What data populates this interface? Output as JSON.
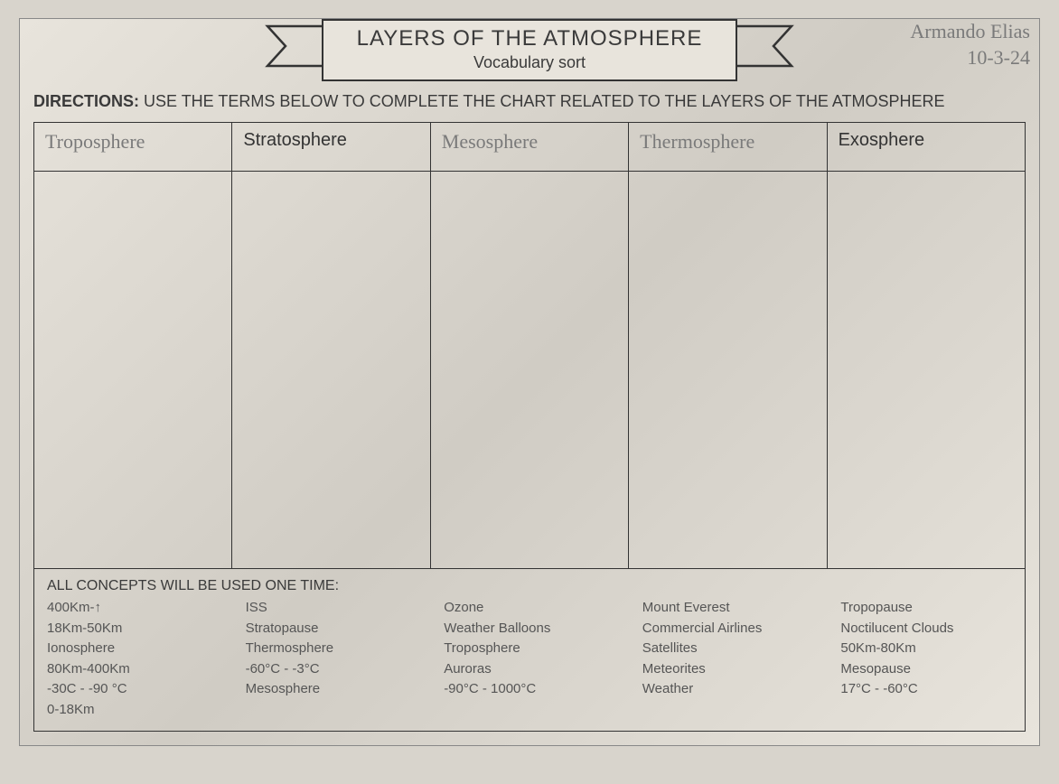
{
  "title": {
    "main": "LAYERS OF THE ATMOSPHERE",
    "sub": "Vocabulary sort"
  },
  "student": {
    "name_line1": "Armando Elias",
    "name_line2": "10-3-24"
  },
  "directions": {
    "label": "DIRECTIONS:",
    "text": " USE THE TERMS BELOW TO COMPLETE THE CHART RELATED TO THE LAYERS OF THE ATMOSPHERE"
  },
  "chart": {
    "headers": [
      {
        "text": "Troposphere",
        "handwritten": true
      },
      {
        "text": "Stratosphere",
        "handwritten": false
      },
      {
        "text": "Mesosphere",
        "handwritten": true
      },
      {
        "text": "Thermosphere",
        "handwritten": true
      },
      {
        "text": "Exosphere",
        "handwritten": false
      }
    ]
  },
  "concepts": {
    "title": "ALL CONCEPTS WILL BE USED ONE TIME:",
    "columns": [
      [
        "400Km-↑",
        "18Km-50Km",
        "Ionosphere",
        "80Km-400Km",
        "-30C - -90 °C",
        "0-18Km"
      ],
      [
        "ISS",
        "Stratopause",
        "Thermosphere",
        "-60°C - -3°C",
        "Mesosphere"
      ],
      [
        "Ozone",
        "Weather Balloons",
        "Troposphere",
        "Auroras",
        "-90°C - 1000°C"
      ],
      [
        "Mount Everest",
        "Commercial Airlines",
        "Satellites",
        "Meteorites",
        "Weather"
      ],
      [
        "Tropopause",
        "Noctilucent Clouds",
        "50Km-80Km",
        "Mesopause",
        "17°C - -60°C"
      ]
    ]
  },
  "style": {
    "border_color": "#333333",
    "text_color": "#3a3a3a",
    "handwritten_color": "#7a7a7a",
    "background": "#e8e4dc"
  }
}
